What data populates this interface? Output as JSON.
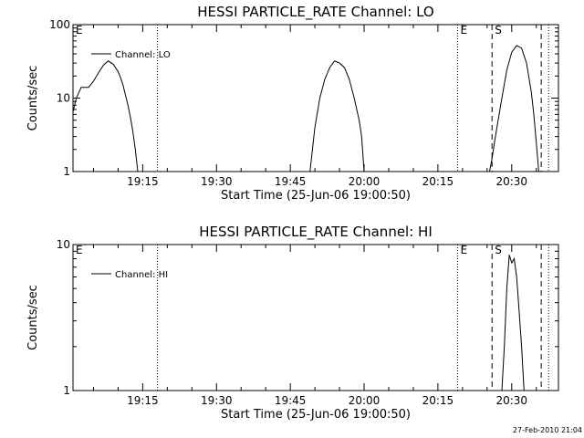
{
  "footer_timestamp": "27-Feb-2010 21:04",
  "chart_data": [
    {
      "type": "line",
      "title": "HESSI PARTICLE_RATE Channel: LO",
      "xlabel": "Start Time (25-Jun-06 19:00:50)",
      "ylabel": "Counts/sec",
      "yscale": "log",
      "ylim": [
        1,
        100
      ],
      "xlim_minutes": [
        "19:00:50",
        "20:39:30"
      ],
      "x_ticks": [
        "19:15",
        "19:30",
        "19:45",
        "20:00",
        "20:15",
        "20:30"
      ],
      "y_ticks": [
        "1",
        "10",
        "100"
      ],
      "legend": "Channel: LO",
      "legend_position": "top-left",
      "markers": [
        {
          "label": "E",
          "time": "19:00:50",
          "style": "dotted"
        },
        {
          "label": "",
          "time": "19:18:00",
          "style": "dotted"
        },
        {
          "label": "E",
          "time": "20:19:00",
          "style": "dotted"
        },
        {
          "label": "S",
          "time": "20:26:00",
          "style": "dashed"
        },
        {
          "label": "",
          "time": "20:36:00",
          "style": "dashed"
        },
        {
          "label": "",
          "time": "20:37:30",
          "style": "dotted"
        }
      ],
      "series": [
        {
          "name": "Channel: LO",
          "points": [
            [
              "19:00:50",
              6.5
            ],
            [
              "19:01:30",
              10
            ],
            [
              "19:02:30",
              14
            ],
            [
              "19:04:00",
              14
            ],
            [
              "19:05:00",
              17
            ],
            [
              "19:06:00",
              22
            ],
            [
              "19:07:00",
              28
            ],
            [
              "19:08:00",
              32
            ],
            [
              "19:09:00",
              29
            ],
            [
              "19:10:00",
              23
            ],
            [
              "19:10:30",
              19
            ],
            [
              "19:11:00",
              15
            ],
            [
              "19:11:30",
              11
            ],
            [
              "19:12:00",
              8
            ],
            [
              "19:12:30",
              5.5
            ],
            [
              "19:13:00",
              3.5
            ],
            [
              "19:13:30",
              2
            ],
            [
              "19:14:00",
              1
            ]
          ]
        },
        {
          "name": "Channel: LO",
          "points": [
            [
              "19:49:00",
              1
            ],
            [
              "19:49:30",
              2
            ],
            [
              "19:50:00",
              4
            ],
            [
              "19:51:00",
              10
            ],
            [
              "19:52:00",
              18
            ],
            [
              "19:53:00",
              26
            ],
            [
              "19:54:00",
              32
            ],
            [
              "19:55:00",
              30
            ],
            [
              "19:56:00",
              26
            ],
            [
              "19:57:00",
              18
            ],
            [
              "19:58:00",
              10
            ],
            [
              "19:59:00",
              5
            ],
            [
              "19:59:30",
              3
            ],
            [
              "20:00:00",
              1
            ]
          ]
        },
        {
          "name": "Channel: LO",
          "points": [
            [
              "20:25:30",
              1
            ],
            [
              "20:26:00",
              1.5
            ],
            [
              "20:26:30",
              2.5
            ],
            [
              "20:27:00",
              4
            ],
            [
              "20:28:00",
              10
            ],
            [
              "20:29:00",
              24
            ],
            [
              "20:30:00",
              42
            ],
            [
              "20:31:00",
              52
            ],
            [
              "20:32:00",
              48
            ],
            [
              "20:33:00",
              30
            ],
            [
              "20:34:00",
              12
            ],
            [
              "20:34:30",
              6
            ],
            [
              "20:35:00",
              2.5
            ],
            [
              "20:35:30",
              1
            ]
          ]
        }
      ]
    },
    {
      "type": "line",
      "title": "HESSI PARTICLE_RATE Channel: HI",
      "xlabel": "Start Time (25-Jun-06 19:00:50)",
      "ylabel": "Counts/sec",
      "yscale": "log",
      "ylim": [
        1,
        10
      ],
      "xlim_minutes": [
        "19:00:50",
        "20:39:30"
      ],
      "x_ticks": [
        "19:15",
        "19:30",
        "19:45",
        "20:00",
        "20:15",
        "20:30"
      ],
      "y_ticks": [
        "1",
        "10"
      ],
      "legend": "Channel: HI",
      "legend_position": "top-left",
      "markers": [
        {
          "label": "E",
          "time": "19:00:50",
          "style": "dotted"
        },
        {
          "label": "",
          "time": "19:18:00",
          "style": "dotted"
        },
        {
          "label": "E",
          "time": "20:19:00",
          "style": "dotted"
        },
        {
          "label": "S",
          "time": "20:26:00",
          "style": "dashed"
        },
        {
          "label": "",
          "time": "20:36:00",
          "style": "dashed"
        },
        {
          "label": "",
          "time": "20:37:30",
          "style": "dotted"
        }
      ],
      "series": [
        {
          "name": "Channel: HI",
          "points": [
            [
              "20:28:00",
              1
            ],
            [
              "20:28:30",
              2
            ],
            [
              "20:29:00",
              5
            ],
            [
              "20:29:30",
              8.5
            ],
            [
              "20:30:00",
              7.5
            ],
            [
              "20:30:30",
              8
            ],
            [
              "20:31:00",
              6
            ],
            [
              "20:31:30",
              3.5
            ],
            [
              "20:32:00",
              2
            ],
            [
              "20:32:30",
              1
            ]
          ]
        }
      ]
    }
  ]
}
